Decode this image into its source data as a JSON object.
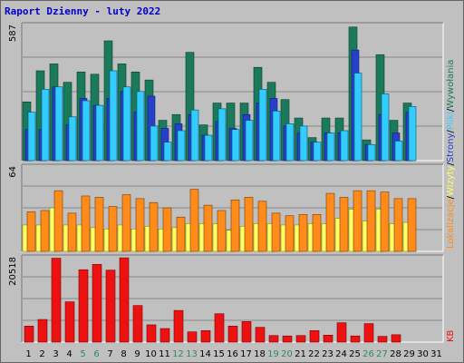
{
  "title": "Raport Dzienny -  luty 2022",
  "colors": {
    "background": "#C0C0C0",
    "title": "#0000CC",
    "visits": "#1B7A5A",
    "pages": "#2840C8",
    "files": "#33CCFF",
    "hits": "#1B7A5A",
    "visits_fill": "#FFFF66",
    "pages_fill": "#FF8C1A",
    "kb": "#EE1111",
    "weekend_label": "#2E8B57",
    "weekday_label": "#000000"
  },
  "chart_data": [
    {
      "type": "bar",
      "name": "hits-pages-files",
      "y_axis_label": "587",
      "ylim": [
        0,
        587
      ],
      "categories": [
        "1",
        "2",
        "3",
        "4",
        "5",
        "6",
        "7",
        "8",
        "9",
        "10",
        "11",
        "12",
        "13",
        "14",
        "15",
        "16",
        "17",
        "18",
        "19",
        "20",
        "21",
        "22",
        "23",
        "24",
        "25",
        "26",
        "27",
        "28",
        "29",
        "30",
        "31"
      ],
      "series": [
        {
          "name": "Wywołania",
          "values": [
            255,
            390,
            420,
            340,
            385,
            375,
            520,
            420,
            385,
            350,
            175,
            200,
            470,
            155,
            250,
            250,
            250,
            405,
            340,
            265,
            185,
            100,
            185,
            185,
            580,
            90,
            460,
            175,
            250,
            0,
            0
          ]
        },
        {
          "name": "Strony",
          "values": [
            135,
            135,
            320,
            155,
            270,
            240,
            270,
            300,
            210,
            280,
            140,
            160,
            200,
            110,
            170,
            140,
            200,
            250,
            270,
            150,
            120,
            80,
            120,
            120,
            480,
            70,
            200,
            120,
            210,
            0,
            0
          ]
        },
        {
          "name": "Pliki",
          "values": [
            210,
            310,
            320,
            190,
            260,
            240,
            390,
            320,
            300,
            150,
            80,
            130,
            220,
            110,
            225,
            135,
            175,
            310,
            215,
            160,
            150,
            80,
            120,
            130,
            380,
            70,
            290,
            85,
            235,
            0,
            0
          ]
        }
      ]
    },
    {
      "type": "bar",
      "name": "visits-sites",
      "y_axis_label": "64",
      "ylim": [
        0,
        64
      ],
      "categories": [
        "1",
        "2",
        "3",
        "4",
        "5",
        "6",
        "7",
        "8",
        "9",
        "10",
        "11",
        "12",
        "13",
        "14",
        "15",
        "16",
        "17",
        "18",
        "19",
        "20",
        "21",
        "22",
        "23",
        "24",
        "25",
        "26",
        "27",
        "28",
        "29",
        "30",
        "31"
      ],
      "series": [
        {
          "name": "Wizyty",
          "values": [
            30,
            31,
            46,
            29,
            42,
            41,
            34,
            43,
            40,
            37,
            33,
            26,
            47,
            35,
            31,
            39,
            41,
            38,
            29,
            27,
            28,
            28,
            44,
            41,
            46,
            46,
            45,
            40,
            40,
            0,
            0
          ]
        },
        {
          "name": "Lokalizacje",
          "values": [
            20,
            20,
            33,
            20,
            20,
            18,
            17,
            20,
            17,
            19,
            17,
            18,
            21,
            21,
            21,
            16,
            19,
            21,
            21,
            20,
            20,
            21,
            21,
            25,
            32,
            23,
            32,
            21,
            22,
            0,
            0
          ]
        }
      ]
    },
    {
      "type": "bar",
      "name": "kb",
      "y_axis_label": "20518",
      "ylim": [
        0,
        20518
      ],
      "categories": [
        "1",
        "2",
        "3",
        "4",
        "5",
        "6",
        "7",
        "8",
        "9",
        "10",
        "11",
        "12",
        "13",
        "14",
        "15",
        "16",
        "17",
        "18",
        "19",
        "20",
        "21",
        "22",
        "23",
        "24",
        "25",
        "26",
        "27",
        "28",
        "29",
        "30",
        "31"
      ],
      "series": [
        {
          "name": "KB",
          "values": [
            3900,
            5500,
            20400,
            9800,
            17600,
            18900,
            17500,
            20500,
            8900,
            4200,
            3300,
            7700,
            2500,
            2800,
            6900,
            3900,
            5000,
            3600,
            1600,
            1500,
            1600,
            2800,
            1700,
            4700,
            1500,
            4500,
            1400,
            1800,
            0,
            0,
            0
          ]
        }
      ]
    }
  ],
  "legend_right": {
    "top": [
      {
        "label": "Wywołania",
        "color": "#1B7A5A"
      },
      {
        "label": "/",
        "color": "#000000"
      },
      {
        "label": "Pliki",
        "color": "#33CCFF"
      },
      {
        "label": "/",
        "color": "#000000"
      },
      {
        "label": "Strony",
        "color": "#2840C8"
      },
      {
        "label": "/",
        "color": "#000000"
      },
      {
        "label": "Wizyty",
        "color": "#FFFF66"
      },
      {
        "label": "/",
        "color": "#000000"
      },
      {
        "label": "Lokalizacje",
        "color": "#FF8C1A"
      }
    ],
    "bottom": {
      "label": "KB",
      "color": "#EE1111"
    }
  },
  "weekend_days": [
    "5",
    "6",
    "12",
    "13",
    "19",
    "20",
    "26",
    "27"
  ]
}
